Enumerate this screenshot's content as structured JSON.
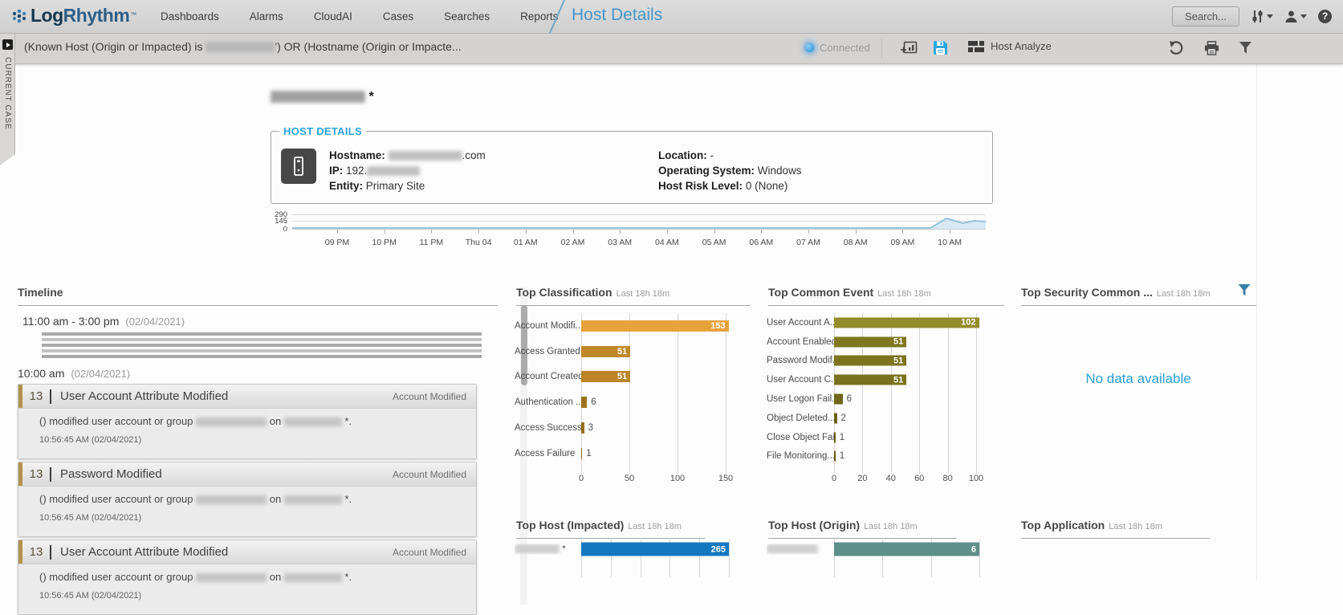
{
  "navbar": {
    "logo_primary": "Log",
    "logo_secondary": "Rhythm",
    "items": [
      "Dashboards",
      "Alarms",
      "CloudAI",
      "Cases",
      "Searches",
      "Reports"
    ],
    "page_title": "Host Details",
    "search_button": "Search..."
  },
  "filter_bar": {
    "query_prefix": "(Known Host (Origin or Impacted) is",
    "query_suffix": "') OR (Hostname (Origin or Impacte...",
    "connected": "Connected",
    "host_analyze": "Host Analyze"
  },
  "current_case_label": "CURRENT CASE",
  "host": {
    "title_mark": "*",
    "legend": "HOST DETAILS",
    "hostname_label": "Hostname:",
    "hostname_suffix": ".com",
    "ip_label": "IP:",
    "ip_prefix": "192.",
    "entity_label": "Entity:",
    "entity_value": "Primary Site",
    "location_label": "Location:",
    "location_value": "-",
    "os_label": "Operating System:",
    "os_value": "Windows",
    "risk_label": "Host Risk Level:",
    "risk_value": "0 (None)"
  },
  "sparkline": {
    "y_ticks": [
      "290",
      "145",
      "0"
    ],
    "x_ticks": [
      "09 PM",
      "10 PM",
      "11 PM",
      "Thu 04",
      "01 AM",
      "02 AM",
      "03 AM",
      "04 AM",
      "05 AM",
      "06 AM",
      "07 AM",
      "08 AM",
      "09 AM",
      "10 AM"
    ]
  },
  "timeline": {
    "title": "Timeline",
    "groups": [
      {
        "time": "11:00 am - 3:00 pm",
        "date": "(02/04/2021)"
      },
      {
        "time": "10:00 am",
        "date": "(02/04/2021)"
      }
    ],
    "events": [
      {
        "count": "13",
        "title": "User Account Attribute Modified",
        "tag": "Account Modified",
        "body_pre": "() modified user account or group",
        "body_mid": "on",
        "body_post": "*.",
        "time": "10:56:45 AM (02/04/2021)"
      },
      {
        "count": "13",
        "title": "Password Modified",
        "tag": "Account Modified",
        "body_pre": "() modified user account or group",
        "body_mid": "on",
        "body_post": "*.",
        "time": "10:56:45 AM (02/04/2021)"
      },
      {
        "count": "13",
        "title": "User Account Attribute Modified",
        "tag": "Account Modified",
        "body_pre": "() modified user account or group",
        "body_mid": "on",
        "body_post": "*.",
        "time": "10:56:45 AM (02/04/2021)"
      }
    ]
  },
  "chart_data": [
    {
      "type": "bar",
      "orientation": "horizontal",
      "title": "Top Classification",
      "subtitle": "Last 18h 18m",
      "categories": [
        "Account Modifi...",
        "Access Granted",
        "Account Created",
        "Authentication ...",
        "Access Success",
        "Access Failure"
      ],
      "values": [
        153,
        51,
        51,
        6,
        3,
        1
      ],
      "colors": [
        "#e6a33c",
        "#c08928",
        "#bc8526",
        "#9b721c",
        "#966f1b",
        "#8f6a19"
      ],
      "x_ticks": [
        0,
        50,
        100,
        150
      ],
      "xlim": [
        0,
        150
      ]
    },
    {
      "type": "bar",
      "orientation": "horizontal",
      "title": "Top Common Event",
      "subtitle": "Last 18h 18m",
      "categories": [
        "User Account A...",
        "Account Enabled",
        "Password Modif...",
        "User Account C...",
        "User Logon Fail...",
        "Object Deleted...",
        "Close Object Fai...",
        "File Monitoring..."
      ],
      "values": [
        102,
        51,
        51,
        51,
        6,
        2,
        1,
        1
      ],
      "colors": [
        "#948c2b",
        "#7f781f",
        "#7c751e",
        "#79731d",
        "#6d6717",
        "#696316",
        "#666014",
        "#635d13"
      ],
      "x_ticks": [
        0,
        20,
        40,
        60,
        80,
        100
      ],
      "xlim": [
        0,
        100
      ]
    },
    {
      "type": "bar",
      "title": "Top Security Common ...",
      "subtitle": "Last 18h 18m",
      "no_data": "No data available"
    },
    {
      "type": "bar",
      "orientation": "horizontal",
      "title": "Top Host (Impacted)",
      "subtitle": "Last 18h 18m",
      "categories": [
        ""
      ],
      "redacted_labels": true,
      "label_suffix": "*",
      "values": [
        265
      ],
      "colors": [
        "#1478bf"
      ],
      "xlim": [
        0,
        265
      ]
    },
    {
      "type": "bar",
      "orientation": "horizontal",
      "title": "Top Host (Origin)",
      "subtitle": "Last 18h 18m",
      "categories": [
        ""
      ],
      "redacted_labels": true,
      "values": [
        6
      ],
      "colors": [
        "#5e8f88"
      ],
      "xlim": [
        0,
        6
      ]
    },
    {
      "type": "bar",
      "title": "Top Application",
      "subtitle": "Last 18h 18m"
    }
  ],
  "colors": {
    "accent_blue": "#2aa3dc",
    "page_title_blue": "#4697cb",
    "no_data_blue": "#2b9fd4",
    "connected_dot": "#1f8dd6"
  }
}
